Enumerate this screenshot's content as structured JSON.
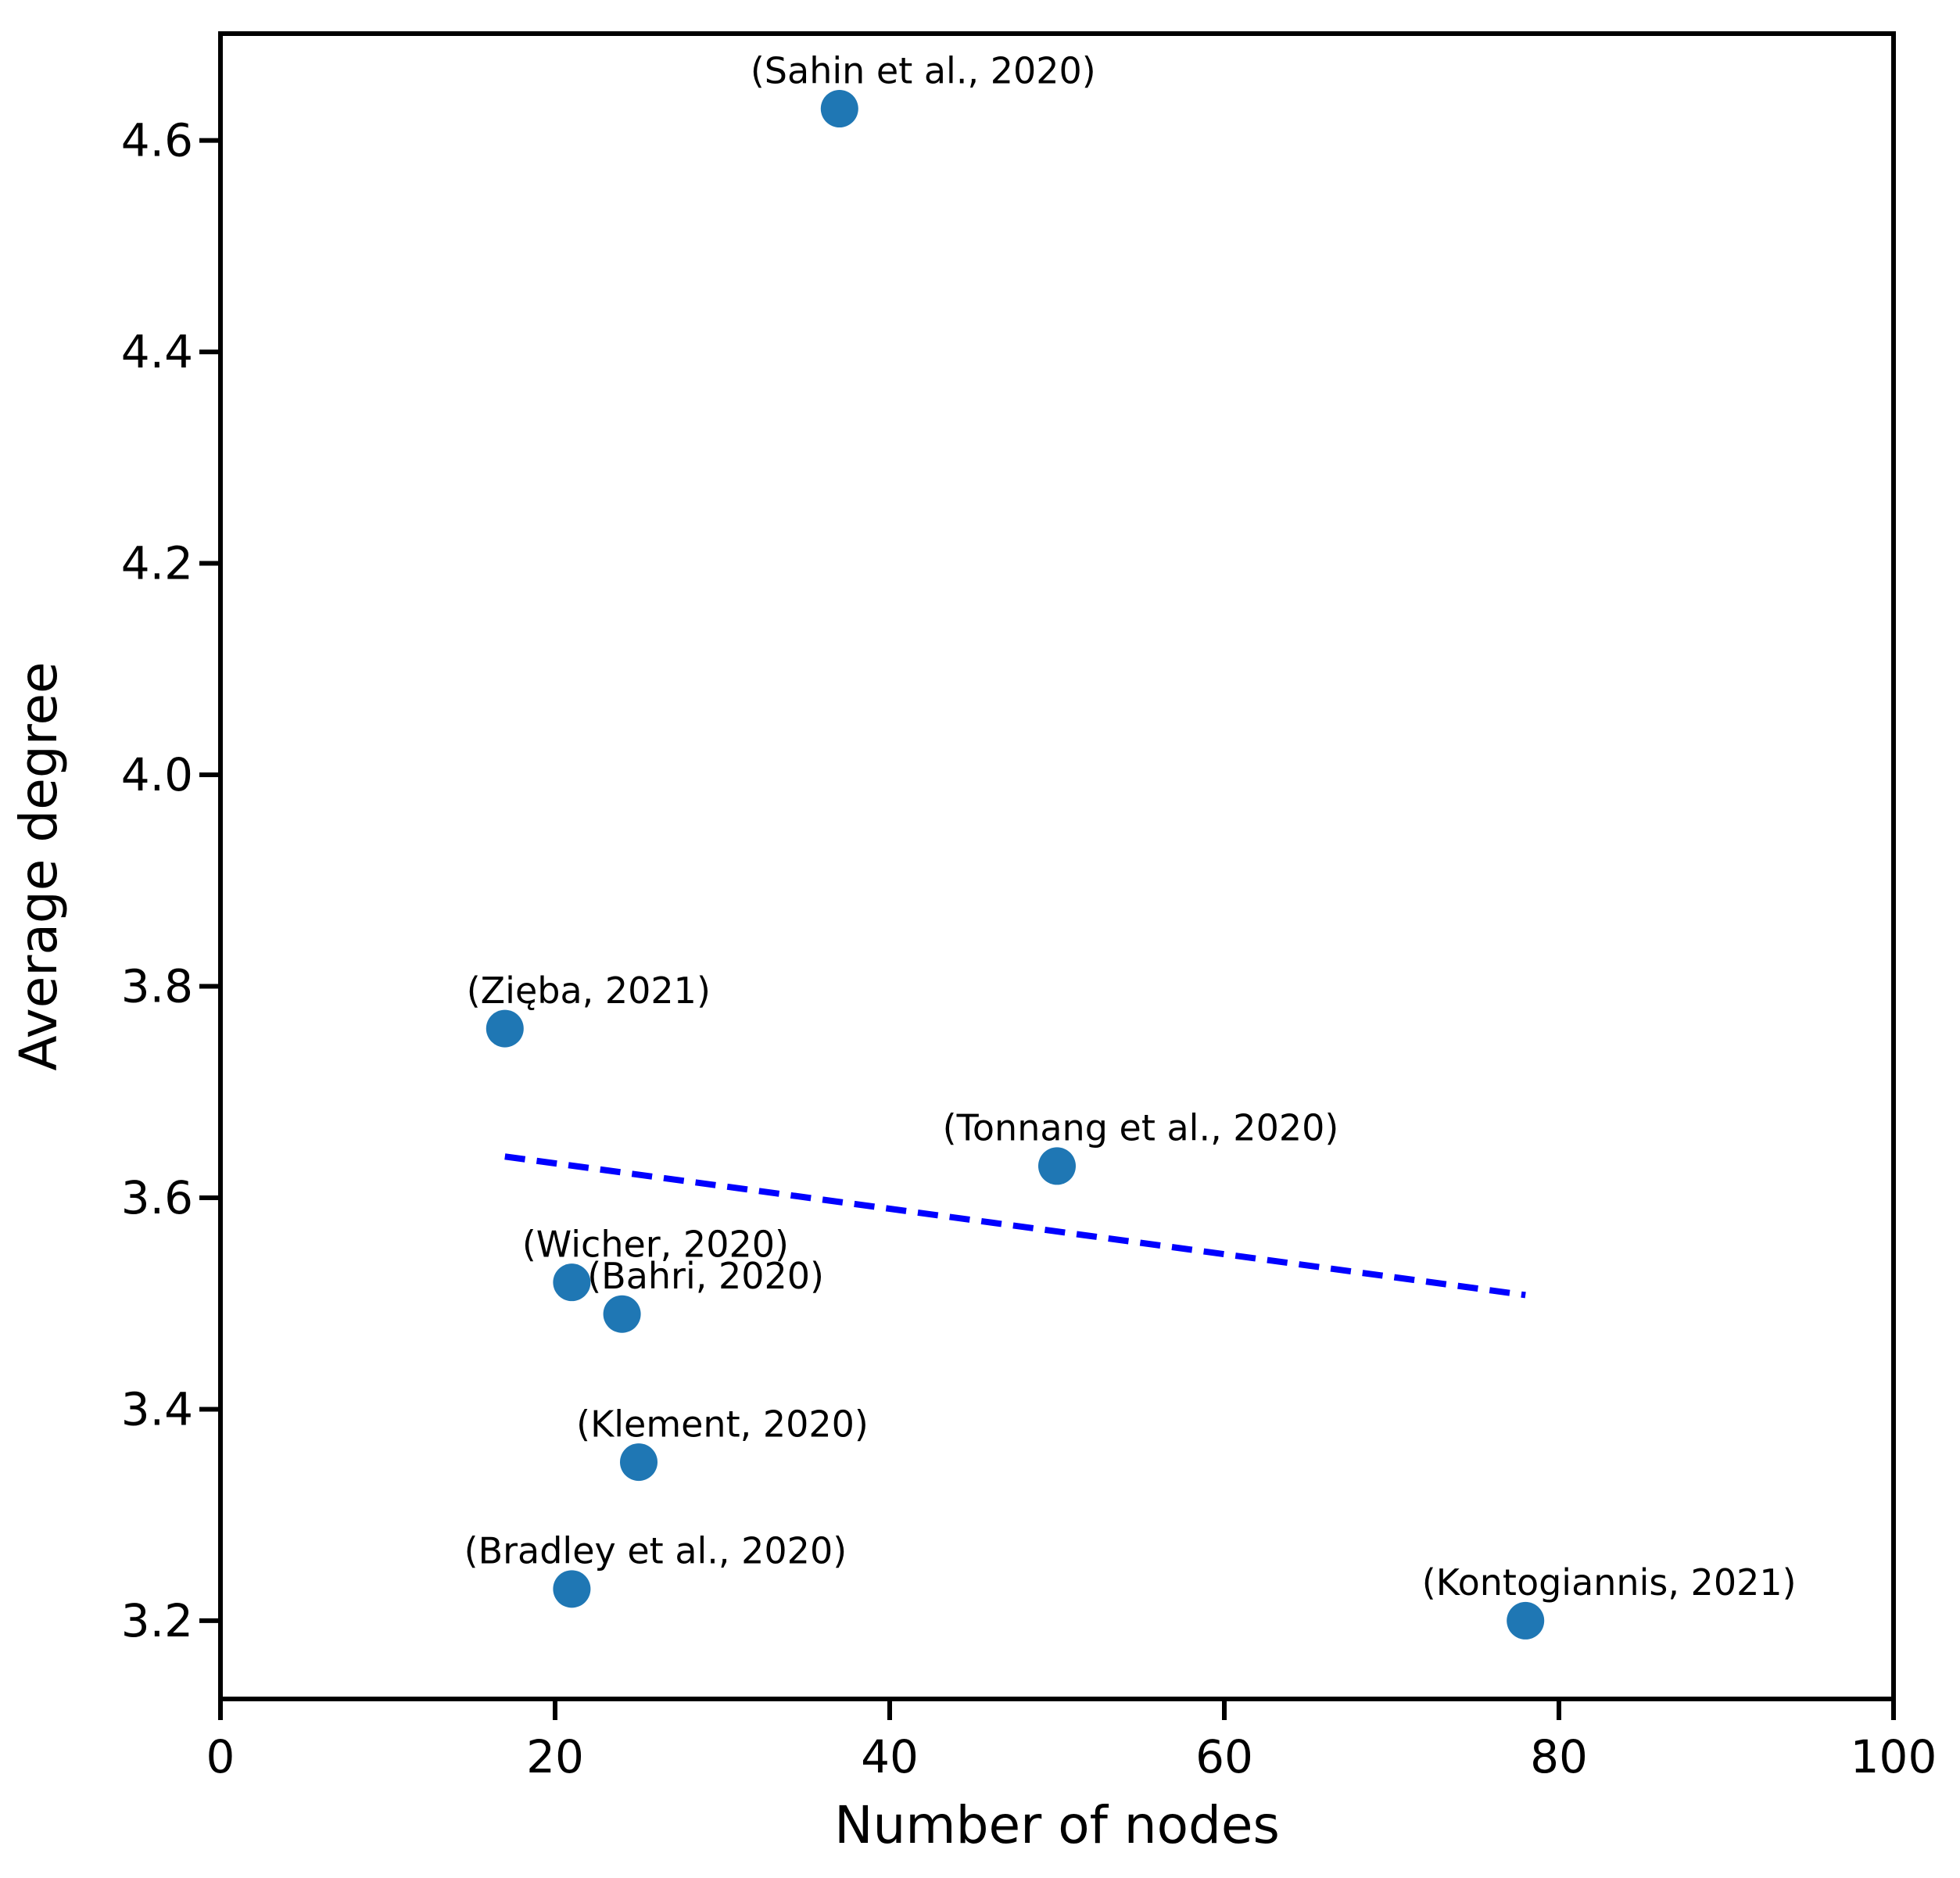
{
  "chart_data": {
    "type": "scatter",
    "title": "",
    "xlabel": "Number of nodes",
    "ylabel": "Average degree",
    "xlim": [
      0,
      100
    ],
    "ylim": [
      3.126,
      4.701
    ],
    "xticks": [
      "0",
      "20",
      "40",
      "60",
      "80",
      "100"
    ],
    "yticks": [
      "3.2",
      "3.4",
      "3.6",
      "3.8",
      "4.0",
      "4.2",
      "4.4",
      "4.6"
    ],
    "grid": false,
    "legend_position": "none",
    "marker_color": "#1f77b4",
    "axis_color": "#000000",
    "trendline_color": "#0000ff",
    "points": [
      {
        "label": "(Sahin et al., 2020)",
        "x": 37,
        "y": 4.63
      },
      {
        "label": "(Zięba, 2021)",
        "x": 17,
        "y": 3.76
      },
      {
        "label": "(Tonnang et al., 2020)",
        "x": 50,
        "y": 3.63
      },
      {
        "label": "(Wicher, 2020)",
        "x": 21,
        "y": 3.52
      },
      {
        "label": "(Bahri, 2020)",
        "x": 24,
        "y": 3.49
      },
      {
        "label": "(Klement, 2020)",
        "x": 25,
        "y": 3.35
      },
      {
        "label": "(Bradley et al., 2020)",
        "x": 21,
        "y": 3.23
      },
      {
        "label": "(Kontogiannis, 2021)",
        "x": 78,
        "y": 3.2
      }
    ],
    "trendline": {
      "type": "linear-fit",
      "style": "dashed",
      "x_start": 17,
      "y_start": 3.639,
      "x_end": 78,
      "y_end": 3.508
    },
    "annotation_offset": {
      "dx_units": 5,
      "dy_units": 0.036
    }
  }
}
